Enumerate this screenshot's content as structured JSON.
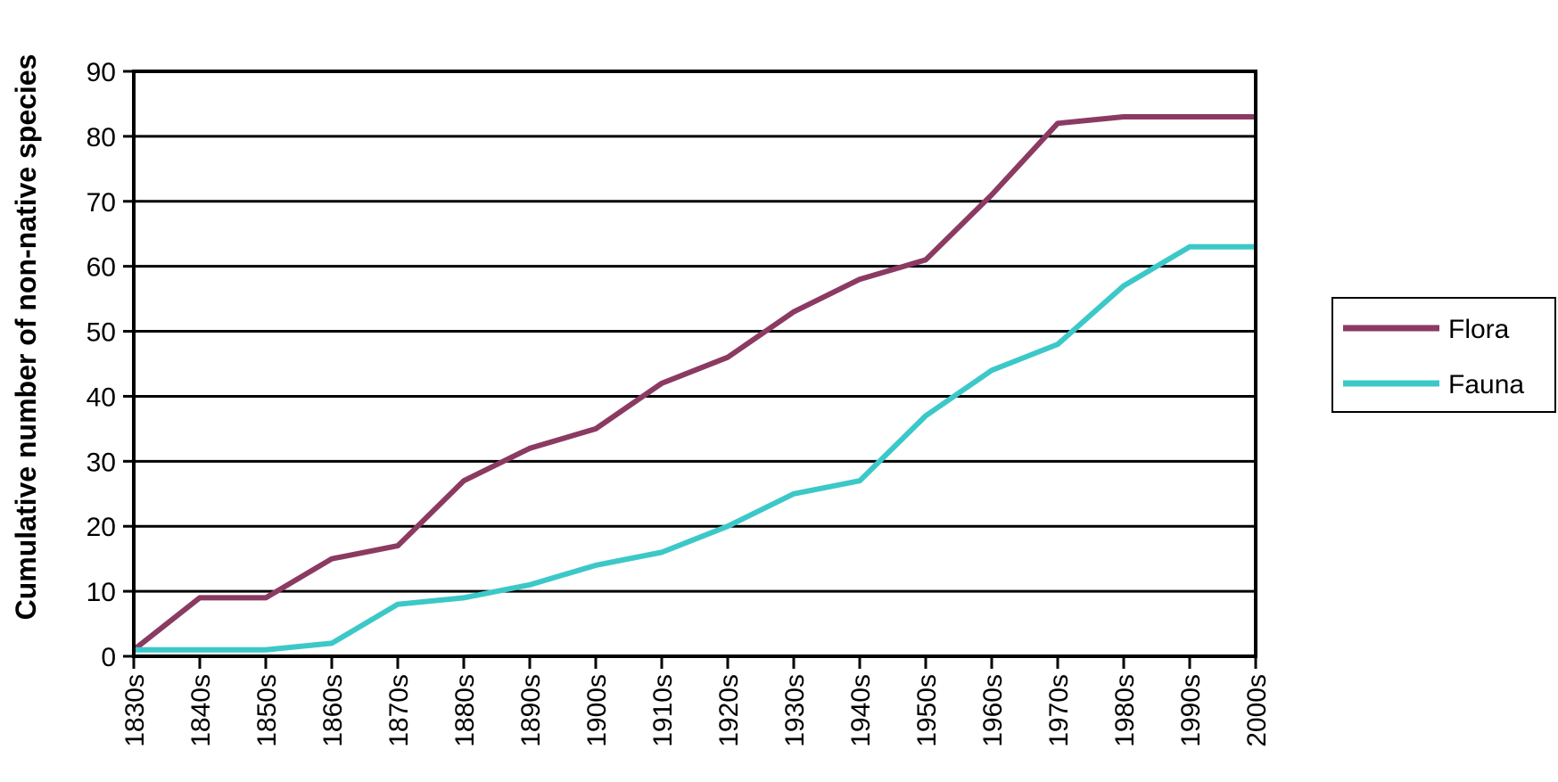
{
  "chart_data": {
    "type": "line",
    "title": "",
    "xlabel": "",
    "ylabel": "Cumulative number of non-native species",
    "categories": [
      "1830s",
      "1840s",
      "1850s",
      "1860s",
      "1870s",
      "1880s",
      "1890s",
      "1900s",
      "1910s",
      "1920s",
      "1930s",
      "1940s",
      "1950s",
      "1960s",
      "1970s",
      "1980s",
      "1990s",
      "2000s"
    ],
    "ylim": [
      0,
      90
    ],
    "yticks": [
      0,
      10,
      20,
      30,
      40,
      50,
      60,
      70,
      80,
      90
    ],
    "ytick_labels": [
      "0",
      "10",
      "20",
      "30",
      "40",
      "50",
      "60",
      "70",
      "80",
      "90"
    ],
    "grid": true,
    "legend_position": "right",
    "series": [
      {
        "name": "Flora",
        "color": "#8b3a62",
        "values": [
          1,
          9,
          9,
          15,
          17,
          27,
          32,
          35,
          42,
          46,
          53,
          58,
          61,
          71,
          82,
          83,
          83,
          83
        ]
      },
      {
        "name": "Fauna",
        "color": "#3cc8c8",
        "values": [
          1,
          1,
          1,
          2,
          8,
          9,
          11,
          14,
          16,
          20,
          25,
          27,
          37,
          44,
          48,
          57,
          63,
          63
        ]
      }
    ]
  }
}
